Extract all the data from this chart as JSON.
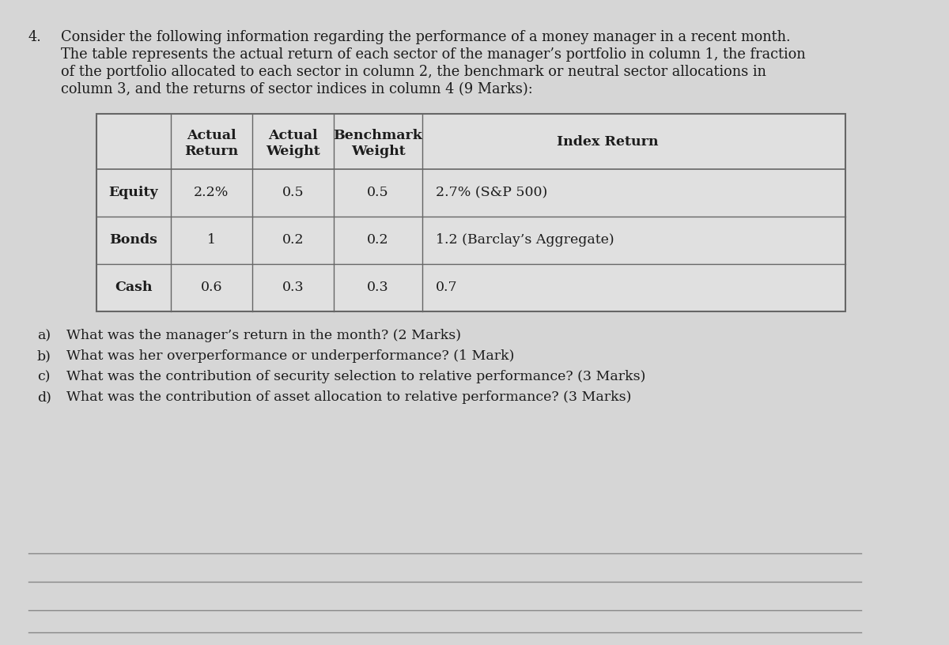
{
  "question_number": "4.",
  "intro_lines": [
    "Consider the following information regarding the performance of a money manager in a recent month.",
    "The table represents the actual return of each sector of the manager’s portfolio in column 1, the fraction",
    "of the portfolio allocated to each sector in column 2, the benchmark or neutral sector allocations in",
    "column 3, and the returns of sector indices in column 4 (9 Marks):"
  ],
  "col_headers_line1": [
    "",
    "Actual",
    "Actual",
    "Benchmark",
    "Index Return"
  ],
  "col_headers_line2": [
    "",
    "Return",
    "Weight",
    "Weight",
    ""
  ],
  "table_rows": [
    [
      "Equity",
      "2.2%",
      "0.5",
      "0.5",
      "2.7% (S&P 500)"
    ],
    [
      "Bonds",
      "1",
      "0.2",
      "0.2",
      "1.2 (Barclay’s Aggregate)"
    ],
    [
      "Cash",
      "0.6",
      "0.3",
      "0.3",
      "0.7"
    ]
  ],
  "questions": [
    [
      "a)",
      "What was the manager’s return in the month? (2 Marks)"
    ],
    [
      "b)",
      "What was her overperformance or underperformance? (1 Mark)"
    ],
    [
      "c)",
      "What was the contribution of security selection to relative performance? (3 Marks)"
    ],
    [
      "d)",
      "What was the contribution of asset allocation to relative performance? (3 Marks)"
    ]
  ],
  "bg_color": "#d6d6d6",
  "table_face_color": "#e8e8e8",
  "text_color": "#1c1c1c",
  "line_color": "#666666",
  "bottom_line_color": "#888888",
  "font_size_intro": 12.8,
  "font_size_table_header": 12.5,
  "font_size_table_row": 12.5,
  "font_size_questions": 12.5,
  "qnum_font_size": 12.8
}
